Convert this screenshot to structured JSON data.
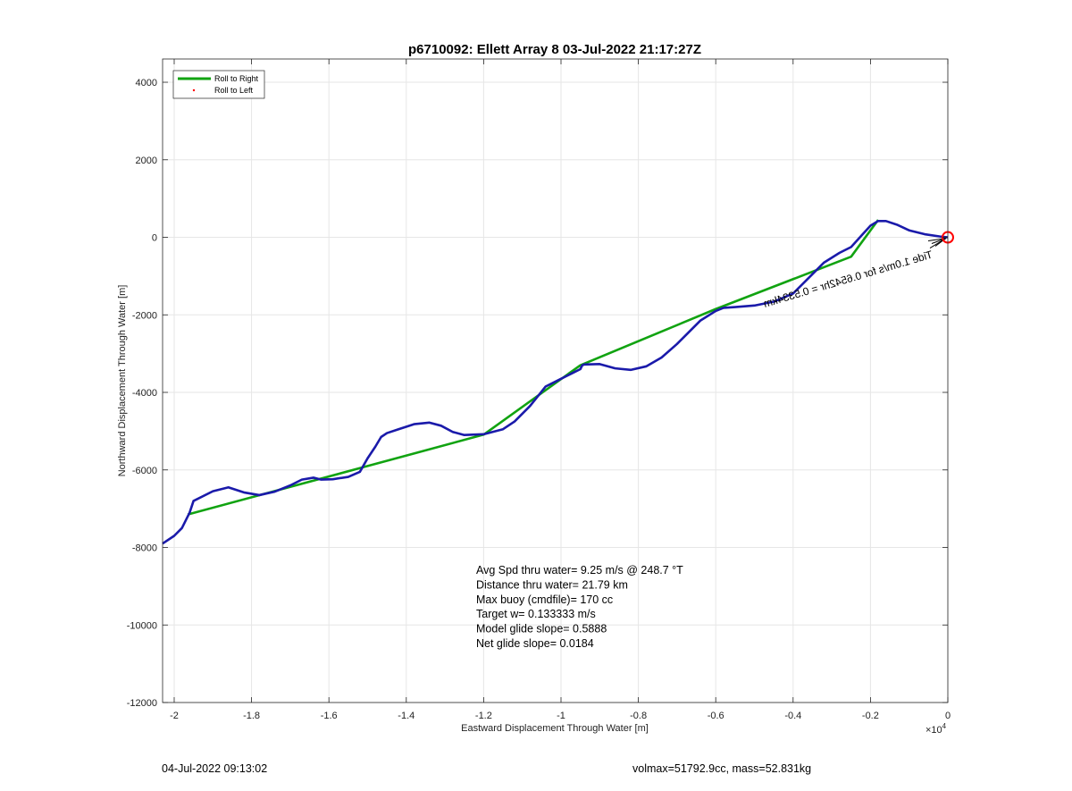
{
  "chart_data": {
    "type": "line",
    "title": "p6710092: Ellett Array 8 03-Jul-2022 21:17:27Z",
    "xlabel": "Eastward Displacement Through Water [m]",
    "ylabel": "Northward Displacement Through Water [m]",
    "x_exponent_label": "×10",
    "x_exponent_power": "4",
    "xlim": [
      -2.03,
      0.0
    ],
    "ylim": [
      -12000,
      4600
    ],
    "x_ticks": [
      -2,
      -1.8,
      -1.6,
      -1.4,
      -1.2,
      -1,
      -0.8,
      -0.6,
      -0.4,
      -0.2,
      0
    ],
    "x_tick_labels": [
      "-2",
      "-1.8",
      "-1.6",
      "-1.4",
      "-1.2",
      "-1",
      "-0.8",
      "-0.6",
      "-0.4",
      "-0.2",
      "0"
    ],
    "y_ticks": [
      -12000,
      -10000,
      -8000,
      -6000,
      -4000,
      -2000,
      0,
      2000,
      4000
    ],
    "y_tick_labels": [
      "-12000",
      "-10000",
      "-8000",
      "-6000",
      "-4000",
      "-2000",
      "0",
      "2000",
      "4000"
    ],
    "grid": true,
    "legend_position": "top-left",
    "series": [
      {
        "name": "Roll to Right",
        "color": "#11a311",
        "x": [
          -1.965,
          -1.5,
          -1.2,
          -0.95,
          -0.6,
          -0.25,
          -0.18
        ],
        "y": [
          -7150,
          -5900,
          -5090,
          -3300,
          -1850,
          -500,
          450
        ]
      },
      {
        "name": "Roll to Left",
        "color": "#ff0000",
        "x": [],
        "y": []
      },
      {
        "name": "",
        "color": "#1a1aaa",
        "x": [
          -2.03,
          -2.0,
          -1.98,
          -1.96,
          -1.95,
          -1.9,
          -1.86,
          -1.82,
          -1.78,
          -1.74,
          -1.7,
          -1.67,
          -1.64,
          -1.62,
          -1.59,
          -1.55,
          -1.52,
          -1.5,
          -1.48,
          -1.465,
          -1.45,
          -1.42,
          -1.38,
          -1.34,
          -1.31,
          -1.28,
          -1.25,
          -1.2,
          -1.15,
          -1.12,
          -1.08,
          -1.04,
          -1.0,
          -0.97,
          -0.95,
          -0.945,
          -0.94,
          -0.9,
          -0.86,
          -0.82,
          -0.78,
          -0.74,
          -0.7,
          -0.67,
          -0.64,
          -0.6,
          -0.58,
          -0.55,
          -0.5,
          -0.45,
          -0.4,
          -0.36,
          -0.32,
          -0.28,
          -0.25,
          -0.22,
          -0.2,
          -0.18,
          -0.16,
          -0.13,
          -0.1,
          -0.06,
          -0.02,
          0.0
        ],
        "y": [
          -7900,
          -7700,
          -7500,
          -7100,
          -6800,
          -6550,
          -6450,
          -6580,
          -6650,
          -6560,
          -6400,
          -6250,
          -6200,
          -6250,
          -6240,
          -6180,
          -6050,
          -5700,
          -5400,
          -5150,
          -5050,
          -4950,
          -4820,
          -4780,
          -4860,
          -5020,
          -5100,
          -5080,
          -4950,
          -4750,
          -4350,
          -3850,
          -3650,
          -3500,
          -3400,
          -3300,
          -3280,
          -3270,
          -3380,
          -3420,
          -3330,
          -3100,
          -2750,
          -2450,
          -2150,
          -1900,
          -1820,
          -1800,
          -1760,
          -1660,
          -1450,
          -1050,
          -650,
          -400,
          -250,
          80,
          300,
          420,
          420,
          320,
          180,
          80,
          20,
          0
        ]
      }
    ],
    "annotations": {
      "rotated_text": "Tide 1.0m/s for 0.6542hr = 0.5334km",
      "rotated_text_partial": "0.5334km"
    },
    "marker": {
      "name": "current position",
      "x": 0.0,
      "y": 0,
      "color": "#ff0000"
    },
    "stats": [
      "Avg Spd thru water=  9.25 m/s @ 248.7 °T",
      "Distance thru water= 21.79 km",
      "Max buoy (cmdfile)= 170 cc",
      "Target w= 0.133333 m/s",
      "Model glide slope= 0.5888",
      "Net glide slope= 0.0184"
    ]
  },
  "footer": {
    "timestamp": "04-Jul-2022 09:13:02",
    "volmax": "volmax=51792.9cc, mass=52.831kg"
  }
}
